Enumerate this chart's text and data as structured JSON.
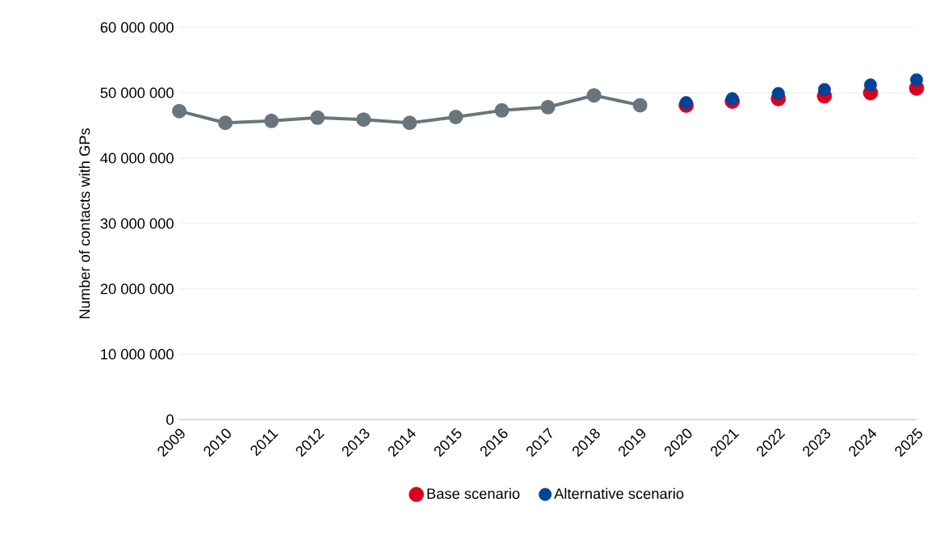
{
  "chart_data": {
    "type": "line",
    "ylabel": "Number of contacts with GPs",
    "categories": [
      "2009",
      "2010",
      "2011",
      "2012",
      "2013",
      "2014",
      "2015",
      "2016",
      "2017",
      "2018",
      "2019",
      "2020",
      "2021",
      "2022",
      "2023",
      "2024",
      "2025"
    ],
    "series": [
      {
        "color": "#68767c",
        "marker": "circle",
        "values": [
          47200000,
          45400000,
          45700000,
          46200000,
          45900000,
          45400000,
          46300000,
          47300000,
          47800000,
          49600000,
          48100000,
          null,
          null,
          null,
          null,
          null,
          null
        ]
      },
      {
        "type": "scatter",
        "name": "Base scenario",
        "color": "#d7001e",
        "marker": "circle",
        "values": [
          null,
          null,
          null,
          null,
          null,
          null,
          null,
          null,
          null,
          null,
          null,
          48100000,
          48700000,
          49100000,
          49500000,
          50000000,
          50700000
        ]
      },
      {
        "type": "scatter",
        "name": "Alternative scenario",
        "color": "#00449a",
        "marker": "circle",
        "values": [
          null,
          null,
          null,
          null,
          null,
          null,
          null,
          null,
          null,
          null,
          null,
          48500000,
          49100000,
          49900000,
          50500000,
          51200000,
          52000000
        ]
      }
    ],
    "ylim": [
      0,
      60000000
    ],
    "yticks": [
      {
        "value": 0,
        "label": "0"
      },
      {
        "value": 10000000,
        "label": "10 000 000"
      },
      {
        "value": 20000000,
        "label": "20 000 000"
      },
      {
        "value": 30000000,
        "label": "30 000 000"
      },
      {
        "value": 40000000,
        "label": "40 000 000"
      },
      {
        "value": 50000000,
        "label": "50 000 000"
      },
      {
        "value": 60000000,
        "label": "60 000 000"
      }
    ],
    "grid": "y",
    "legend": "bottom"
  }
}
